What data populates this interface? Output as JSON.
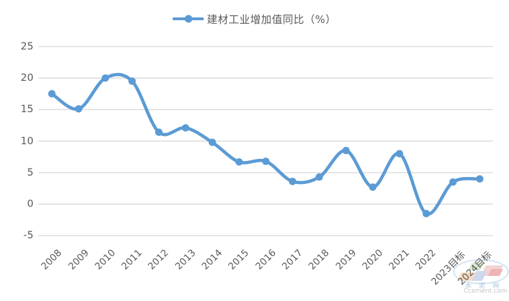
{
  "legend": {
    "label": "建材工业增加值同比（%）"
  },
  "colors": {
    "series": "#5B9BD5",
    "gridline": "#DBDBDB",
    "axis_text": "#595959"
  },
  "chart_data": {
    "type": "line",
    "series_name": "建材工业增加值同比（%）",
    "categories": [
      "2008",
      "2009",
      "2010",
      "2011",
      "2012",
      "2013",
      "2014",
      "2015",
      "2016",
      "2017",
      "2018",
      "2019",
      "2020",
      "2021",
      "2022",
      "2023目标",
      "2024目标"
    ],
    "values": [
      17.5,
      15.1,
      20.0,
      19.5,
      11.4,
      12.1,
      9.8,
      6.7,
      6.8,
      3.6,
      4.3,
      8.5,
      2.7,
      8.0,
      -1.5,
      3.5,
      4.0
    ],
    "y_ticks": [
      25,
      20,
      15,
      10,
      5,
      0,
      -5
    ],
    "ylim": [
      -5,
      25
    ],
    "smooth": true,
    "marker": "circle",
    "legend_position": "top",
    "grid": "horizontal"
  },
  "watermark": {
    "name": "水 泥 网",
    "domain": "Ccement.com"
  }
}
